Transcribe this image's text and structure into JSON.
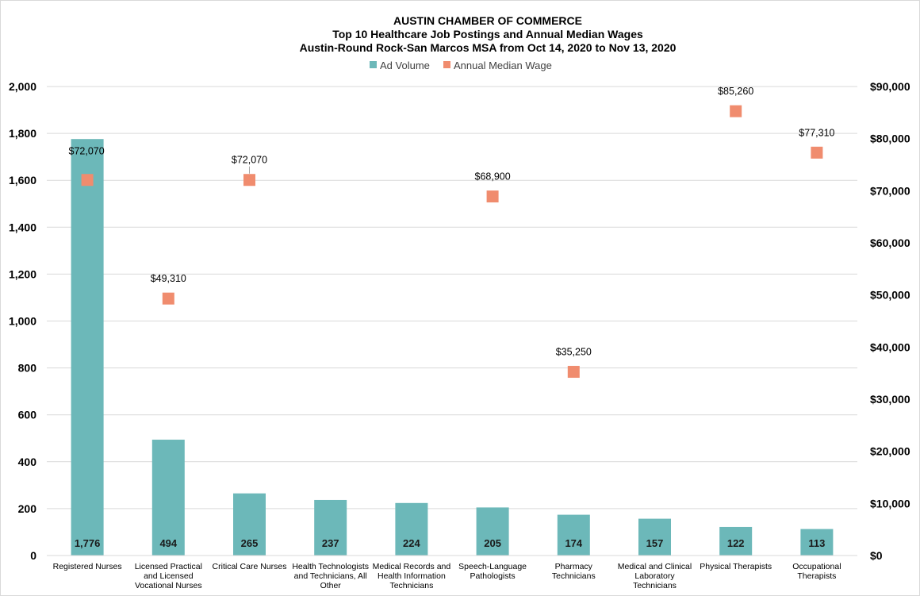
{
  "chart_data": {
    "type": "bar",
    "title": "AUSTIN CHAMBER OF COMMERCE",
    "subtitle_lines": [
      "Top 10 Healthcare Job Postings and Annual  Median Wages",
      "Austin-Round Rock-San Marcos MSA from Oct 14, 2020 to Nov 13, 2020"
    ],
    "legend": {
      "placement": "top-center"
    },
    "categories": [
      [
        "Registered Nurses"
      ],
      [
        "Licensed Practical",
        "and Licensed",
        "Vocational Nurses"
      ],
      [
        "Critical Care Nurses"
      ],
      [
        "Health Technologists",
        "and Technicians, All",
        "Other"
      ],
      [
        "Medical Records and",
        "Health Information",
        "Technicians"
      ],
      [
        "Speech-Language",
        "Pathologists"
      ],
      [
        "Pharmacy",
        "Technicians"
      ],
      [
        "Medical and Clinical",
        "Laboratory",
        "Technicians"
      ],
      [
        "Physical Therapists"
      ],
      [
        "Occupational",
        "Therapists"
      ]
    ],
    "series": [
      {
        "name": "Ad Volume",
        "type": "bar",
        "axis": "left",
        "color": "#6cb8b9",
        "values": [
          1776,
          494,
          265,
          237,
          224,
          205,
          174,
          157,
          122,
          113
        ],
        "labels": [
          "1,776",
          "494",
          "265",
          "237",
          "224",
          "205",
          "174",
          "157",
          "122",
          "113"
        ]
      },
      {
        "name": "Annual Median Wage",
        "type": "marker",
        "axis": "right",
        "color": "#f08c6e",
        "values": [
          72070,
          49310,
          72070,
          null,
          null,
          68900,
          35250,
          null,
          85260,
          77310
        ],
        "labels": [
          "$72,070",
          "$49,310",
          "$72,070",
          "",
          "",
          "$68,900",
          "$35,250",
          "",
          "$85,260",
          "$77,310"
        ]
      }
    ],
    "y_left": {
      "range": [
        0,
        2000
      ],
      "ticks": [
        0,
        200,
        400,
        600,
        800,
        1000,
        1200,
        1400,
        1600,
        1800,
        2000
      ],
      "tick_labels": [
        "0",
        "200",
        "400",
        "600",
        "800",
        "1,000",
        "1,200",
        "1,400",
        "1,600",
        "1,800",
        "2,000"
      ]
    },
    "y_right": {
      "range": [
        0,
        90000
      ],
      "ticks": [
        0,
        10000,
        20000,
        30000,
        40000,
        50000,
        60000,
        70000,
        80000,
        90000
      ],
      "tick_labels": [
        "$0",
        "$10,000",
        "$20,000",
        "$30,000",
        "$40,000",
        "$50,000",
        "$60,000",
        "$70,000",
        "$80,000",
        "$90,000"
      ]
    },
    "grid": true
  }
}
